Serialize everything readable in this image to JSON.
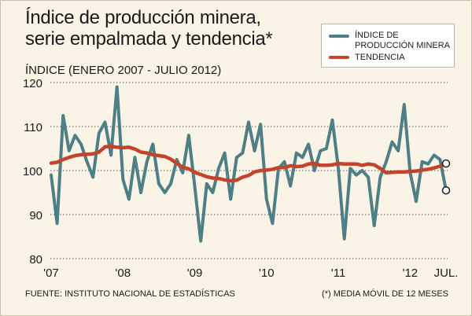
{
  "header": {
    "title_line1": "Índice de producción minera,",
    "title_line2": "serie empalmada y tendencia*",
    "subtitle": "ÍNDICE (ENERO 2007 - JULIO 2012)"
  },
  "legend": {
    "series1_line1": "ÍNDICE DE",
    "series1_line2": "PRODUCCIÓN MINERA",
    "series2": "TENDENCIA"
  },
  "footer": {
    "source": "FUENTE: INSTITUTO NACIONAL DE ESTADÍSTICAS",
    "note": "(*) MEDIA MÓVIL DE 12 MESES"
  },
  "colors": {
    "index_line": "#4e7f86",
    "trend_line": "#c4432b",
    "grid": "#555555",
    "background": "#faf4e6"
  },
  "chart_data": {
    "type": "line",
    "title": "Índice de producción minera, serie empalmada y tendencia*",
    "subtitle": "ÍNDICE (ENERO 2007 - JULIO 2012)",
    "xlabel": "",
    "ylabel": "",
    "ylim": [
      80,
      120
    ],
    "yticks": [
      80,
      90,
      100,
      110,
      120
    ],
    "x_tick_labels": [
      {
        "label": "'07",
        "index": 0
      },
      {
        "label": "'08",
        "index": 12
      },
      {
        "label": "'09",
        "index": 24
      },
      {
        "label": "'10",
        "index": 36
      },
      {
        "label": "'11",
        "index": 48
      },
      {
        "label": "'12",
        "index": 60
      },
      {
        "label": "JUL.",
        "index": 66
      }
    ],
    "grid": "horizontal dotted",
    "legend_position": "top-right",
    "x_start": "2007-01",
    "x_end": "2012-07",
    "series": [
      {
        "name": "ÍNDICE DE PRODUCCIÓN MINERA",
        "values": [
          99,
          88,
          112.5,
          104.5,
          108,
          106,
          102,
          98.5,
          108.5,
          111,
          103.5,
          119,
          98,
          93.5,
          103,
          95,
          102,
          106,
          97,
          95,
          97,
          102.5,
          99.5,
          108,
          96.5,
          84,
          97,
          95,
          100.5,
          104,
          93.5,
          103,
          104,
          111,
          104.5,
          110.5,
          93.5,
          88,
          100.5,
          102,
          96.5,
          104,
          103,
          106,
          100,
          104.5,
          105,
          111.5,
          100.5,
          84.5,
          100.5,
          99,
          100,
          98.5,
          87.5,
          98.5,
          102,
          106.5,
          104.5,
          115,
          99.5,
          93,
          102,
          101.5,
          103.5,
          102.5,
          95.5
        ]
      },
      {
        "name": "TENDENCIA",
        "values": [
          101.7,
          101.9,
          102.5,
          103.0,
          103.4,
          103.6,
          103.7,
          103.8,
          104.2,
          105.4,
          105.5,
          105.3,
          105.2,
          105.3,
          104.9,
          104.2,
          104.0,
          103.6,
          103.4,
          103.2,
          102.6,
          101.6,
          100.8,
          100.4,
          99.6,
          99.1,
          98.6,
          98.3,
          98.2,
          97.9,
          97.7,
          97.8,
          98.5,
          98.9,
          99.7,
          100.0,
          100.1,
          100.3,
          100.7,
          100.7,
          101.1,
          100.9,
          101.0,
          101.5,
          101.6,
          101.2,
          101.2,
          101.3,
          101.6,
          101.5,
          101.5,
          101.5,
          101.2,
          101.5,
          101.3,
          100.5,
          99.5,
          99.6,
          99.7,
          99.7,
          99.8,
          99.9,
          100.1,
          100.3,
          100.6,
          101.0,
          101.6
        ]
      }
    ]
  }
}
